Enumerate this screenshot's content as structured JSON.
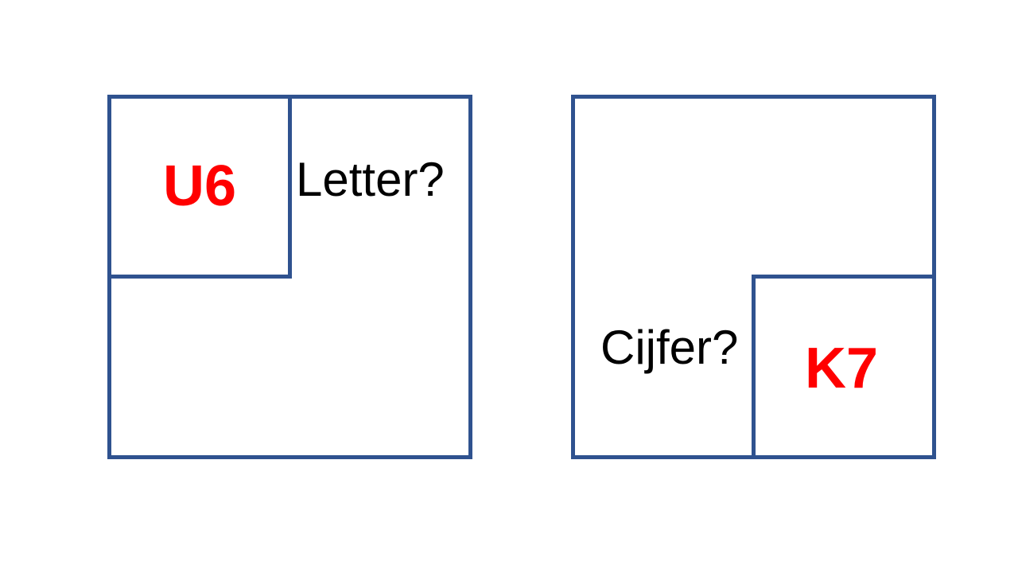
{
  "colors": {
    "box_stroke": "#2F528F",
    "code_text": "#FF0000",
    "question_text": "#000000",
    "background": "#FFFFFF"
  },
  "left_panel": {
    "code": "U6",
    "question": "Letter?"
  },
  "right_panel": {
    "code": "K7",
    "question": "Cijfer?"
  }
}
